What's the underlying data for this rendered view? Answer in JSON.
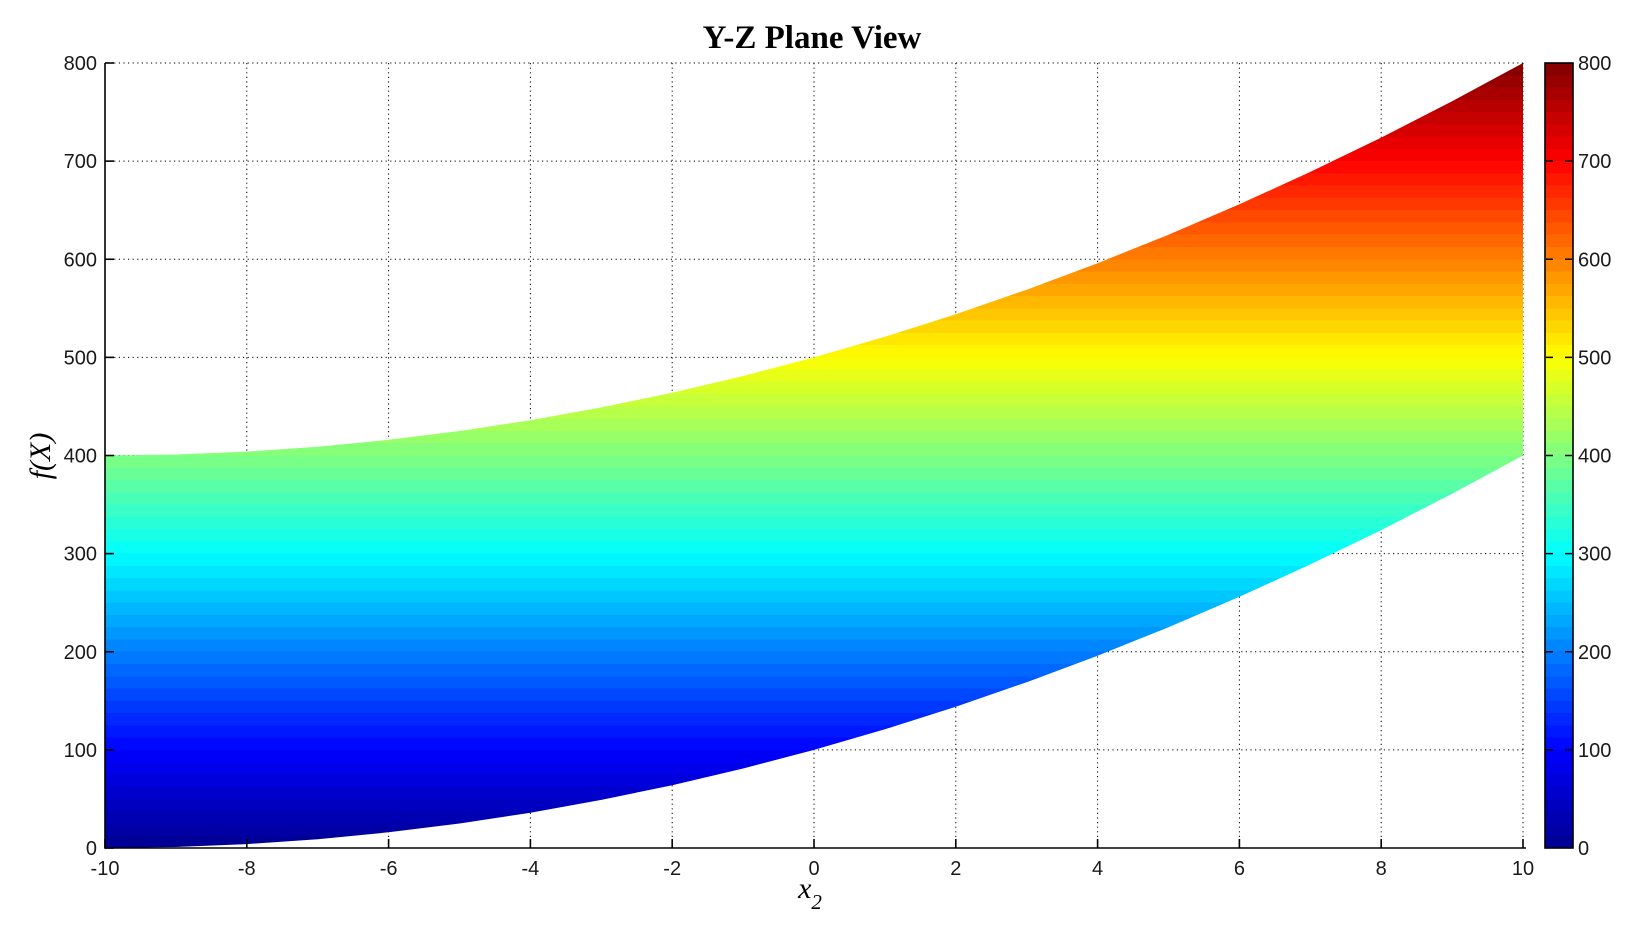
{
  "chart_data": {
    "type": "area",
    "title": "Y-Z Plane View",
    "xlabel": "x_2",
    "xlabel_main": "x",
    "xlabel_sub": "2",
    "ylabel": "f(X)",
    "x_range": [
      -10,
      10
    ],
    "y_range": [
      0,
      800
    ],
    "x_ticks": [
      -10,
      -8,
      -6,
      -4,
      -2,
      0,
      2,
      4,
      6,
      8,
      10
    ],
    "x_tick_labels": [
      "-10",
      "-8",
      "-6",
      "-4",
      "-2",
      "0",
      "2",
      "4",
      "6",
      "8",
      "10"
    ],
    "y_ticks": [
      0,
      100,
      200,
      300,
      400,
      500,
      600,
      700,
      800
    ],
    "y_tick_labels": [
      "0",
      "100",
      "200",
      "300",
      "400",
      "500",
      "600",
      "700",
      "800"
    ],
    "grid": "dotted",
    "legend": "none",
    "band": {
      "description": "Side view of surface f(X) projected on the x2 axis: region between lower=(x2+10)^2 and upper=(x2+10)^2+400, fill colored by f value (jet colormap, flat-shaded bands)",
      "x": [
        -10,
        -9,
        -8,
        -7,
        -6,
        -5,
        -4,
        -3,
        -2,
        -1,
        0,
        1,
        2,
        3,
        4,
        5,
        6,
        7,
        8,
        9,
        10
      ],
      "lower": [
        0,
        1,
        4,
        9,
        16,
        25,
        36,
        49,
        64,
        81,
        100,
        121,
        144,
        169,
        196,
        225,
        256,
        289,
        324,
        361,
        400
      ],
      "upper": [
        400,
        401,
        404,
        409,
        416,
        425,
        436,
        449,
        464,
        481,
        500,
        521,
        544,
        569,
        596,
        625,
        656,
        689,
        724,
        761,
        800
      ]
    },
    "colormap": {
      "name": "jet",
      "levels": 64,
      "stops": [
        {
          "offset": 0.0,
          "color": "#000090"
        },
        {
          "offset": 0.125,
          "color": "#0000FF"
        },
        {
          "offset": 0.375,
          "color": "#00FFFF"
        },
        {
          "offset": 0.625,
          "color": "#FFFF00"
        },
        {
          "offset": 0.875,
          "color": "#FF0000"
        },
        {
          "offset": 1.0,
          "color": "#800000"
        }
      ],
      "range": [
        0,
        800
      ]
    },
    "colorbar": {
      "ticks": [
        0,
        100,
        200,
        300,
        400,
        500,
        600,
        700,
        800
      ],
      "tick_labels": [
        "0",
        "100",
        "200",
        "300",
        "400",
        "500",
        "600",
        "700",
        "800"
      ],
      "range": [
        0,
        800
      ],
      "position": "right"
    },
    "colors": {
      "axis": "#000000",
      "grid": "#000000",
      "background": "#FFFFFF",
      "text": "#1a1a1a"
    }
  }
}
